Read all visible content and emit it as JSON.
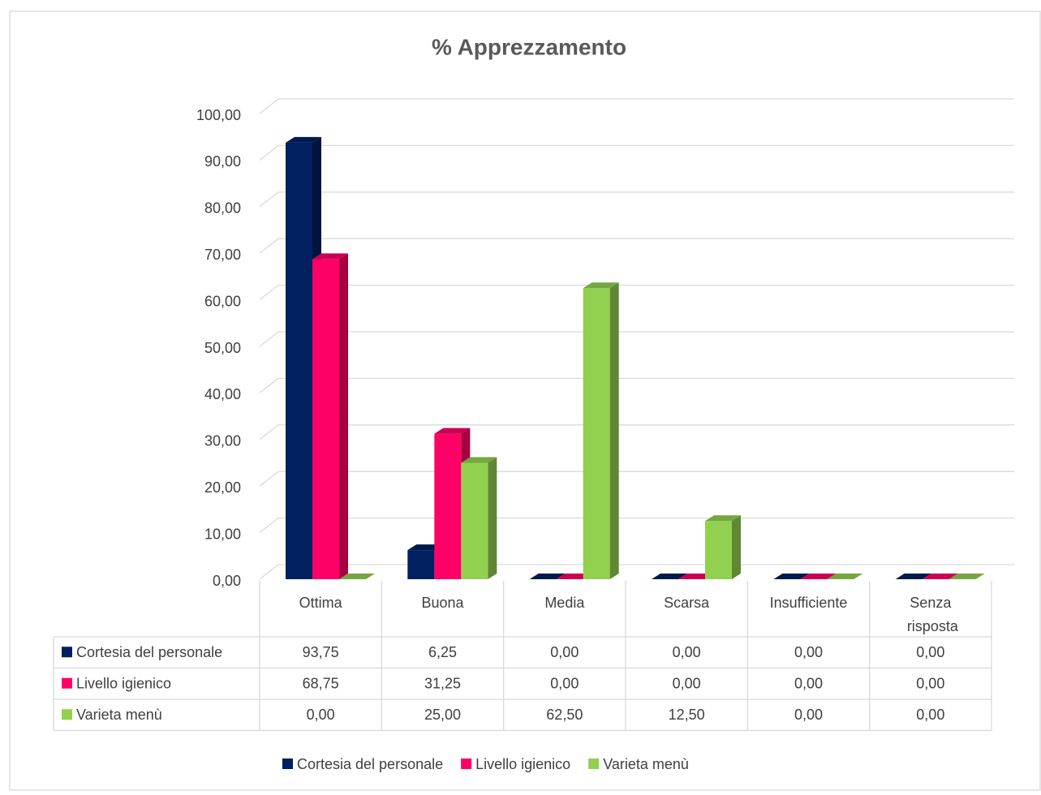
{
  "chart_data": {
    "type": "bar3d",
    "title": "% Apprezzamento",
    "categories": [
      "Ottima",
      "Buona",
      "Media",
      "Scarsa",
      "Insufficiente",
      "Senza risposta"
    ],
    "series": [
      {
        "name": "Cortesia del personale",
        "color": "#002060",
        "values": [
          93.75,
          6.25,
          0,
          0,
          0,
          0
        ],
        "value_labels": [
          "93,75",
          "6,25",
          "0,00",
          "0,00",
          "0,00",
          "0,00"
        ]
      },
      {
        "name": "Livello igienico",
        "color": "#ff0066",
        "values": [
          68.75,
          31.25,
          0,
          0,
          0,
          0
        ],
        "value_labels": [
          "68,75",
          "31,25",
          "0,00",
          "0,00",
          "0,00",
          "0,00"
        ]
      },
      {
        "name": "Varieta menù",
        "color": "#92d050",
        "values": [
          0,
          25,
          62.5,
          12.5,
          0,
          0
        ],
        "value_labels": [
          "0,00",
          "25,00",
          "62,50",
          "12,50",
          "0,00",
          "0,00"
        ]
      }
    ],
    "ylim": [
      0,
      100
    ],
    "yticks": [
      {
        "value": 0,
        "label": "0,00"
      },
      {
        "value": 10,
        "label": "10,00"
      },
      {
        "value": 20,
        "label": "20,00"
      },
      {
        "value": 30,
        "label": "30,00"
      },
      {
        "value": 40,
        "label": "40,00"
      },
      {
        "value": 50,
        "label": "50,00"
      },
      {
        "value": 60,
        "label": "60,00"
      },
      {
        "value": 70,
        "label": "70,00"
      },
      {
        "value": 80,
        "label": "80,00"
      },
      {
        "value": 90,
        "label": "90,00"
      },
      {
        "value": 100,
        "label": "100,00"
      }
    ],
    "grid": true,
    "legend": "bottom",
    "data_table": true
  }
}
